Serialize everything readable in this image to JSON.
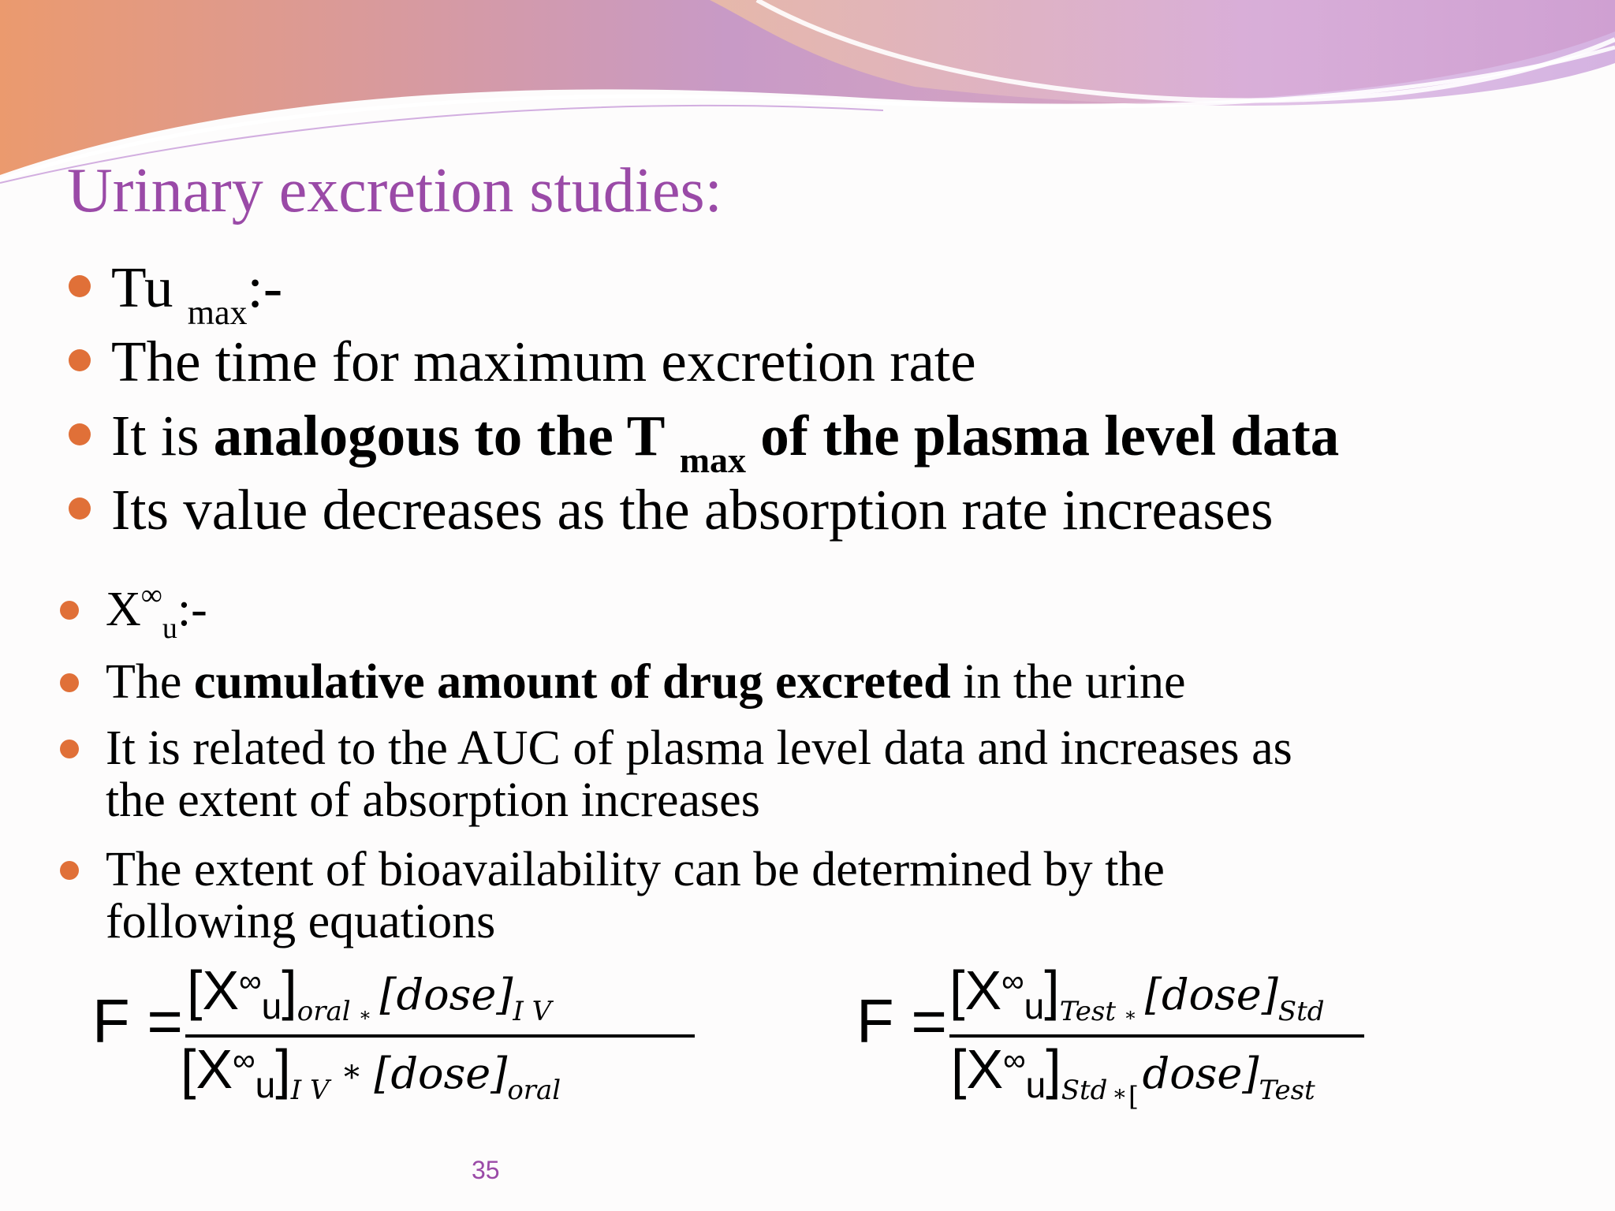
{
  "slide": {
    "title": "Urinary excretion studies:",
    "page_number": "35"
  },
  "tumax": {
    "head_main": "Tu",
    "head_sub": "max",
    "head_tail": ":-",
    "def": "The time for maximum excretion rate",
    "analog_pre": "It is ",
    "analog_bold": "analogous to the T",
    "analog_sub": "max",
    "analog_bold2": " of the plasma level data",
    "decrease": "Its value decreases as the absorption rate increases"
  },
  "xu": {
    "head_main": "X",
    "head_sup": "∞",
    "head_sub": "u",
    "head_tail": ":-",
    "cum_pre": "The ",
    "cum_bold": "cumulative amount of drug excreted",
    "cum_post": " in the urine",
    "auc_line1": "It is related to the AUC of plasma level data and increases as",
    "auc_line2": "the extent of absorption increases",
    "extent_line1": "The extent of bioavailability can be determined by the",
    "extent_line2": "following equations"
  },
  "equations": {
    "lhs": "F =",
    "x": "X",
    "inf": "∞",
    "u": "u",
    "open": "[",
    "close": "]",
    "dose_open": "[dose]",
    "dose_noopen": "dose]",
    "star": "*",
    "eq1": {
      "num_sub1": "oral",
      "num_sub2": "I V",
      "den_sub1": "I V",
      "den_sub2": "oral"
    },
    "eq2": {
      "num_sub1": "Test",
      "num_sub2": "Std",
      "den_sub1": "Std",
      "den_sub2": "Test"
    }
  },
  "colors": {
    "title": "#9a4aa7",
    "bullet": "#e07038",
    "swoosh_orange": "#eb9a6e",
    "swoosh_purple": "#c79ad8"
  }
}
